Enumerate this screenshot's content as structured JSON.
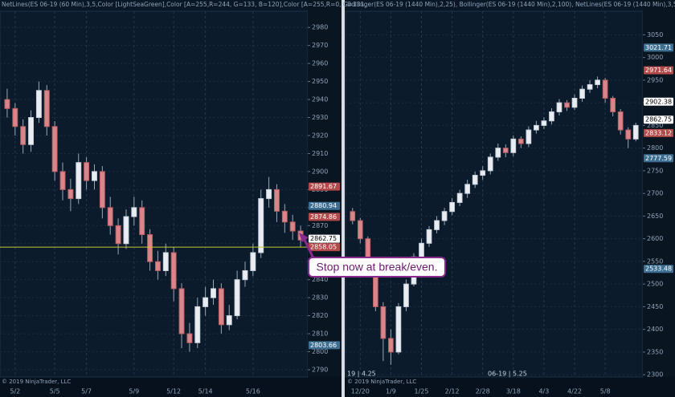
{
  "chart_data": [
    {
      "type": "candlestick",
      "header": "NetLines(ES 06-19 (60 Min),3,5,Color [LightSeaGreen],Color [A=255,R=244, G=133, B=120],Color [A=255,R=0, G=131,",
      "footer": "© 2019 NinjaTrader, LLC",
      "categories": [
        null,
        "5/2",
        null,
        null,
        null,
        null,
        "5/5",
        null,
        null,
        null,
        "5/7",
        null,
        null,
        null,
        null,
        null,
        "5/9",
        null,
        null,
        null,
        null,
        "5/12",
        null,
        null,
        null,
        "5/14",
        null,
        null,
        null,
        null,
        null,
        "5/16",
        null,
        null,
        null,
        null,
        null,
        null
      ],
      "open": [
        2940,
        2935,
        2925,
        2915,
        2930,
        2945,
        2925,
        2900,
        2890,
        2885,
        2905,
        2895,
        2900,
        2880,
        2870,
        2860,
        2875,
        2880,
        2865,
        2850,
        2845,
        2855,
        2835,
        2810,
        2805,
        2825,
        2830,
        2835,
        2815,
        2820,
        2840,
        2845,
        2855,
        2885,
        2890,
        2878,
        2872,
        2867
      ],
      "high": [
        2946,
        2938,
        2929,
        2934,
        2950,
        2948,
        2928,
        2905,
        2896,
        2910,
        2908,
        2904,
        2903,
        2886,
        2874,
        2879,
        2886,
        2884,
        2868,
        2856,
        2860,
        2858,
        2838,
        2816,
        2830,
        2836,
        2840,
        2838,
        2826,
        2845,
        2850,
        2860,
        2890,
        2897,
        2893,
        2882,
        2876,
        2870
      ],
      "low": [
        2930,
        2920,
        2910,
        2911,
        2927,
        2920,
        2895,
        2884,
        2878,
        2882,
        2890,
        2890,
        2874,
        2865,
        2854,
        2857,
        2870,
        2860,
        2845,
        2840,
        2842,
        2828,
        2802,
        2800,
        2802,
        2820,
        2826,
        2810,
        2812,
        2818,
        2836,
        2842,
        2852,
        2880,
        2872,
        2866,
        2862,
        2858
      ],
      "close": [
        2935,
        2925,
        2915,
        2930,
        2945,
        2925,
        2900,
        2890,
        2885,
        2905,
        2895,
        2900,
        2880,
        2870,
        2860,
        2875,
        2880,
        2865,
        2850,
        2845,
        2855,
        2835,
        2810,
        2805,
        2825,
        2830,
        2835,
        2815,
        2820,
        2840,
        2845,
        2855,
        2885,
        2890,
        2878,
        2872,
        2867,
        2862
      ],
      "ylim": [
        2786,
        2989
      ],
      "yticks": [
        2790,
        2800,
        2810,
        2820,
        2830,
        2840,
        2850,
        2860,
        2870,
        2880,
        2890,
        2900,
        2910,
        2920,
        2930,
        2940,
        2950,
        2960,
        2970,
        2980
      ],
      "price_tags": [
        {
          "value": 2891.67,
          "color": "#b44a4a"
        },
        {
          "value": 2880.94,
          "color": "#3d6f93"
        },
        {
          "value": 2874.86,
          "color": "#b44a4a"
        },
        {
          "value": 2862.75,
          "color": "#ffffff"
        },
        {
          "value": 2858.05,
          "color": "#b44a4a"
        },
        {
          "value": 2803.66,
          "color": "#3d6f93"
        }
      ],
      "stop_line_color": "#c8c832"
    },
    {
      "type": "candlestick",
      "header": "Bollinger(ES 06-19 (1440 Min),2,25), Bollinger(ES 06-19 (1440 Min),2,100), NetLines(ES 06-19 (1440 Min),3,5,Color",
      "footer": "© 2019 NinjaTrader, LLC",
      "notes": [
        "19 | 4.25",
        "06-19 | 5.25"
      ],
      "categories": [
        null,
        "12/20",
        null,
        null,
        null,
        "1/9",
        null,
        null,
        null,
        "1/25",
        null,
        null,
        null,
        "2/12",
        null,
        null,
        null,
        "2/28",
        null,
        null,
        null,
        "3/18",
        null,
        null,
        null,
        "4/3",
        null,
        null,
        null,
        "4/22",
        null,
        null,
        null,
        "5/8",
        null,
        null,
        null,
        null
      ],
      "open": [
        2660,
        2640,
        2600,
        2530,
        2450,
        2380,
        2350,
        2450,
        2500,
        2560,
        2590,
        2620,
        2640,
        2660,
        2680,
        2700,
        2720,
        2740,
        2750,
        2780,
        2800,
        2790,
        2820,
        2810,
        2840,
        2850,
        2860,
        2880,
        2900,
        2890,
        2910,
        2930,
        2940,
        2950,
        2910,
        2880,
        2840,
        2820
      ],
      "high": [
        2668,
        2646,
        2605,
        2536,
        2460,
        2400,
        2458,
        2510,
        2568,
        2600,
        2628,
        2650,
        2668,
        2690,
        2708,
        2730,
        2748,
        2760,
        2788,
        2810,
        2808,
        2828,
        2826,
        2848,
        2860,
        2868,
        2888,
        2908,
        2906,
        2918,
        2938,
        2950,
        2958,
        2955,
        2915,
        2886,
        2846,
        2856
      ],
      "low": [
        2632,
        2590,
        2520,
        2440,
        2330,
        2322,
        2345,
        2440,
        2495,
        2552,
        2582,
        2612,
        2630,
        2652,
        2672,
        2690,
        2712,
        2730,
        2742,
        2772,
        2780,
        2782,
        2800,
        2802,
        2832,
        2842,
        2852,
        2872,
        2882,
        2884,
        2902,
        2922,
        2932,
        2900,
        2870,
        2830,
        2800,
        2815
      ],
      "close": [
        2640,
        2600,
        2530,
        2450,
        2380,
        2350,
        2450,
        2500,
        2560,
        2590,
        2620,
        2640,
        2660,
        2680,
        2700,
        2720,
        2740,
        2750,
        2780,
        2800,
        2790,
        2820,
        2810,
        2840,
        2850,
        2860,
        2880,
        2900,
        2890,
        2910,
        2930,
        2940,
        2950,
        2910,
        2880,
        2840,
        2820,
        2850
      ],
      "ylim": [
        2295,
        3102
      ],
      "yticks": [
        2300,
        2350,
        2400,
        2450,
        2500,
        2550,
        2600,
        2650,
        2700,
        2750,
        2800,
        2850,
        2900,
        2950,
        3000,
        3050
      ],
      "price_tags": [
        {
          "value": 3021.71,
          "color": "#3d6f93"
        },
        {
          "value": 2971.64,
          "color": "#b44a4a"
        },
        {
          "value": 2902.38,
          "color": "#ffffff"
        },
        {
          "value": 2862.75,
          "color": "#ffffff"
        },
        {
          "value": 2833.12,
          "color": "#b44a4a"
        },
        {
          "value": 2777.59,
          "color": "#3d6f93"
        },
        {
          "value": 2533.48,
          "color": "#3d6f93"
        }
      ]
    }
  ],
  "annotation": "Stop now at break/even."
}
